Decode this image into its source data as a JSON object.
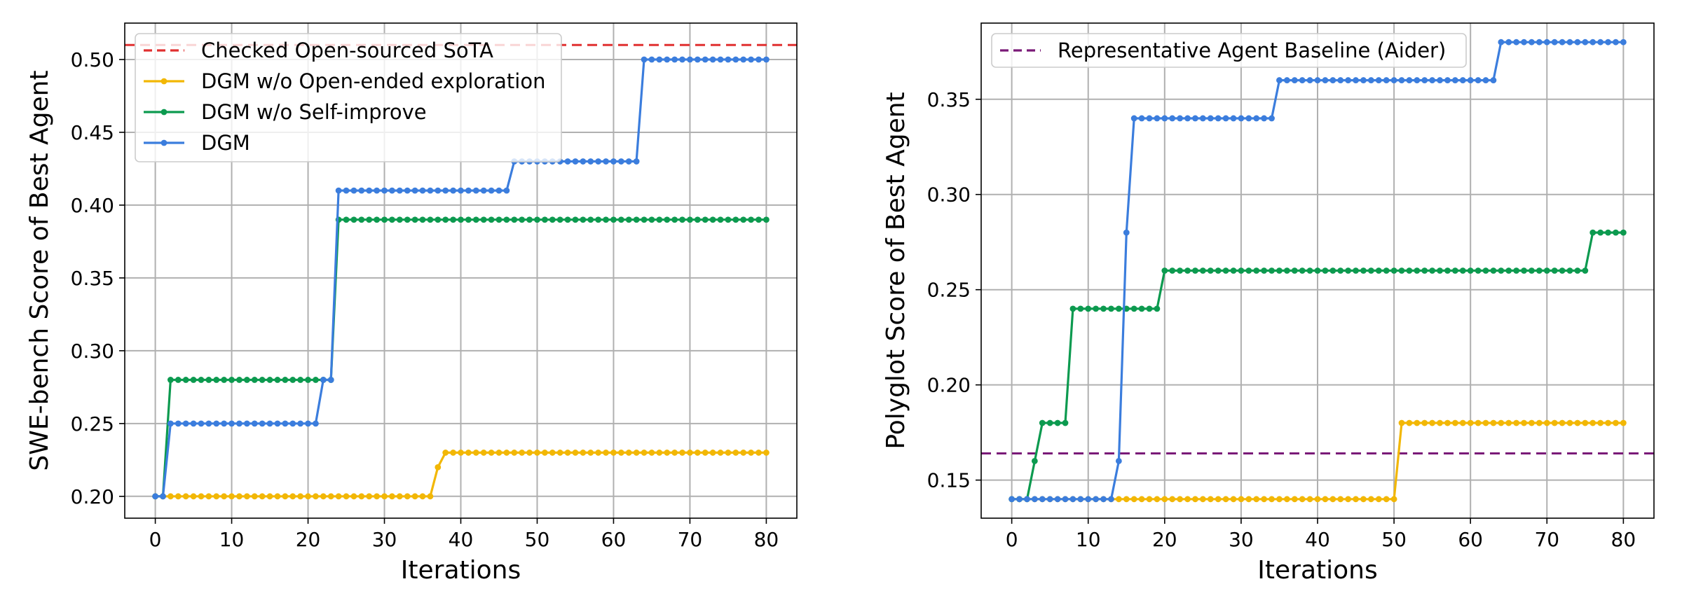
{
  "chart_data": [
    {
      "type": "line",
      "xlabel": "Iterations",
      "ylabel": "SWE-bench Score of Best Agent",
      "xlim": [
        -4,
        84
      ],
      "ylim": [
        0.185,
        0.525
      ],
      "xticks": [
        0,
        10,
        20,
        30,
        40,
        50,
        60,
        70,
        80
      ],
      "yticks": [
        0.2,
        0.25,
        0.3,
        0.35,
        0.4,
        0.45,
        0.5
      ],
      "ytick_labels": [
        "0.20",
        "0.25",
        "0.30",
        "0.35",
        "0.40",
        "0.45",
        "0.50"
      ],
      "grid": true,
      "legend_position": "upper-left",
      "reference_lines": [
        {
          "name": "Checked Open-sourced SoTA",
          "y": 0.51,
          "color": "#e03030",
          "style": "dashed"
        }
      ],
      "series": [
        {
          "name": "DGM w/o Open-ended exploration",
          "color": "#f2b705",
          "segments": [
            {
              "from": 0,
              "to": 36,
              "y": 0.2
            },
            {
              "from": 37,
              "to": 37,
              "y": 0.22
            },
            {
              "from": 38,
              "to": 80,
              "y": 0.23
            }
          ]
        },
        {
          "name": "DGM w/o Self-improve",
          "color": "#0c9a4f",
          "segments": [
            {
              "from": 0,
              "to": 1,
              "y": 0.2
            },
            {
              "from": 2,
              "to": 23,
              "y": 0.28
            },
            {
              "from": 24,
              "to": 80,
              "y": 0.39
            }
          ]
        },
        {
          "name": "DGM",
          "color": "#3b7ddd",
          "segments": [
            {
              "from": 0,
              "to": 1,
              "y": 0.2
            },
            {
              "from": 2,
              "to": 21,
              "y": 0.25
            },
            {
              "from": 22,
              "to": 23,
              "y": 0.28
            },
            {
              "from": 24,
              "to": 46,
              "y": 0.41
            },
            {
              "from": 47,
              "to": 63,
              "y": 0.43
            },
            {
              "from": 64,
              "to": 80,
              "y": 0.5
            }
          ]
        }
      ]
    },
    {
      "type": "line",
      "xlabel": "Iterations",
      "ylabel": "Polyglot Score of Best Agent",
      "xlim": [
        -4,
        84
      ],
      "ylim": [
        0.13,
        0.39
      ],
      "xticks": [
        0,
        10,
        20,
        30,
        40,
        50,
        60,
        70,
        80
      ],
      "yticks": [
        0.15,
        0.2,
        0.25,
        0.3,
        0.35
      ],
      "ytick_labels": [
        "0.15",
        "0.20",
        "0.25",
        "0.30",
        "0.35"
      ],
      "grid": true,
      "legend_position": "upper-left",
      "reference_lines": [
        {
          "name": "Representative Agent Baseline (Aider)",
          "y": 0.164,
          "color": "#7a1a78",
          "style": "dashed"
        }
      ],
      "series": [
        {
          "name": "DGM w/o Open-ended exploration",
          "color": "#f2b705",
          "segments": [
            {
              "from": 0,
              "to": 50,
              "y": 0.14
            },
            {
              "from": 51,
              "to": 80,
              "y": 0.18
            }
          ]
        },
        {
          "name": "DGM w/o Self-improve",
          "color": "#0c9a4f",
          "segments": [
            {
              "from": 0,
              "to": 2,
              "y": 0.14
            },
            {
              "from": 3,
              "to": 3,
              "y": 0.16
            },
            {
              "from": 4,
              "to": 7,
              "y": 0.18
            },
            {
              "from": 8,
              "to": 19,
              "y": 0.24
            },
            {
              "from": 20,
              "to": 75,
              "y": 0.26
            },
            {
              "from": 76,
              "to": 80,
              "y": 0.28
            }
          ]
        },
        {
          "name": "DGM",
          "color": "#3b7ddd",
          "segments": [
            {
              "from": 0,
              "to": 13,
              "y": 0.14
            },
            {
              "from": 14,
              "to": 14,
              "y": 0.16
            },
            {
              "from": 15,
              "to": 15,
              "y": 0.28
            },
            {
              "from": 16,
              "to": 34,
              "y": 0.34
            },
            {
              "from": 35,
              "to": 63,
              "y": 0.36
            },
            {
              "from": 64,
              "to": 80,
              "y": 0.38
            }
          ]
        }
      ]
    }
  ]
}
